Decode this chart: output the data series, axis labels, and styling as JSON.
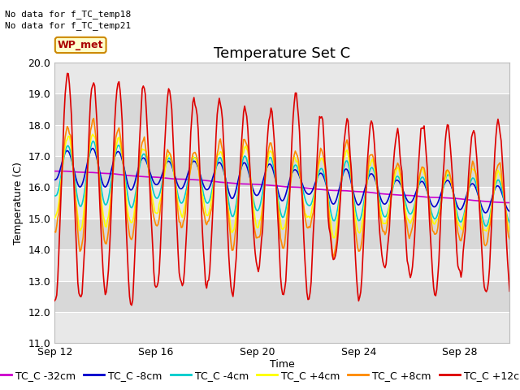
{
  "title": "Temperature Set C",
  "xlabel": "Time",
  "ylabel": "Temperature (C)",
  "ylim": [
    11.0,
    20.0
  ],
  "yticks": [
    11.0,
    12.0,
    13.0,
    14.0,
    15.0,
    16.0,
    17.0,
    18.0,
    19.0,
    20.0
  ],
  "xtick_labels": [
    "Sep 12",
    "Sep 16",
    "Sep 20",
    "Sep 24",
    "Sep 28"
  ],
  "xtick_positions": [
    0,
    96,
    192,
    288,
    384
  ],
  "total_points": 432,
  "no_data_text1": "No data for f_TC_temp18",
  "no_data_text2": "No data for f_TC_temp21",
  "wp_met_label": "WP_met",
  "wp_met_color": "#ffffcc",
  "wp_met_border": "#cc8800",
  "wp_met_text_color": "#aa0000",
  "series": [
    {
      "label": "TC_C -32cm",
      "color": "#cc00cc",
      "lw": 1.2
    },
    {
      "label": "TC_C -8cm",
      "color": "#0000cc",
      "lw": 1.2
    },
    {
      "label": "TC_C -4cm",
      "color": "#00cccc",
      "lw": 1.2
    },
    {
      "label": "TC_C +4cm",
      "color": "#ffff00",
      "lw": 1.2
    },
    {
      "label": "TC_C +8cm",
      "color": "#ff8800",
      "lw": 1.2
    },
    {
      "label": "TC_C +12cm",
      "color": "#dd0000",
      "lw": 1.2
    }
  ],
  "stripe_colors": [
    "#e8e8e8",
    "#d8d8d8"
  ],
  "fig_bg_color": "#ffffff",
  "title_fontsize": 13,
  "axis_label_fontsize": 9,
  "tick_fontsize": 9,
  "legend_fontsize": 9
}
